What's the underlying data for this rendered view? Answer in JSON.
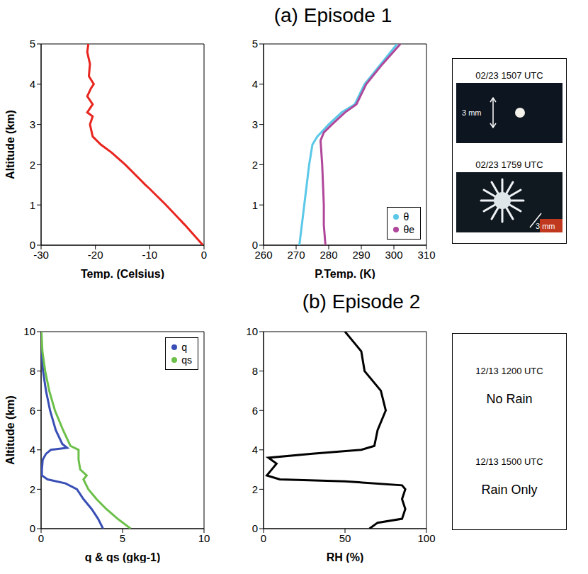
{
  "titles": [
    "(a) Episode 1",
    "(b) Episode 2"
  ],
  "chart_data": [
    {
      "type": "line",
      "xlabel": "Temp. (Celsius)",
      "ylabel": "Altitude (km)",
      "xlim": [
        -30,
        0
      ],
      "xticks": [
        -30,
        -20,
        -10,
        0
      ],
      "ylim": [
        0,
        5
      ],
      "yticks": [
        0,
        1,
        2,
        3,
        4,
        5
      ],
      "series": [
        {
          "color": "#e8251f",
          "x": [
            -0.2,
            -3.5,
            -7,
            -10,
            -10.8,
            -14.5,
            -17,
            -19,
            -20.5,
            -21,
            -20.5,
            -21.5,
            -20.5,
            -21.5,
            -20.8,
            -20.3,
            -21.2,
            -21,
            -21.5,
            -21.3
          ],
          "y": [
            0,
            0.5,
            1.0,
            1.4,
            1.5,
            2.0,
            2.3,
            2.5,
            2.7,
            3.0,
            3.2,
            3.3,
            3.5,
            3.7,
            3.9,
            4.0,
            4.2,
            4.5,
            4.8,
            5.0
          ]
        }
      ]
    },
    {
      "type": "line",
      "xlabel": "P.Temp. (K)",
      "xlim": [
        260,
        310
      ],
      "xticks": [
        260,
        270,
        280,
        290,
        300,
        310
      ],
      "ylim": [
        0,
        5
      ],
      "yticks": [
        0,
        1,
        2,
        3,
        4,
        5
      ],
      "legend": "lower right",
      "series": [
        {
          "name": "θ",
          "color": "#5bc8e8",
          "x": [
            271,
            272.5,
            274,
            275,
            276.5,
            280,
            284,
            288,
            291,
            296,
            301
          ],
          "y": [
            0,
            1,
            2,
            2.5,
            2.7,
            3.0,
            3.3,
            3.5,
            4,
            4.5,
            5
          ]
        },
        {
          "name": "θe",
          "color": "#b0479b",
          "x": [
            279,
            278.5,
            278.5,
            278,
            277.5,
            278.5,
            281,
            285,
            288.5,
            291.5,
            296.5,
            302
          ],
          "y": [
            0,
            0.5,
            1,
            2,
            2.6,
            2.8,
            3.0,
            3.3,
            3.5,
            4,
            4.5,
            5
          ]
        }
      ]
    },
    {
      "type": "line",
      "xlabel": "q & qs (gkg-1)",
      "ylabel": "Altitude (km)",
      "xlim": [
        0,
        10
      ],
      "xticks": [
        0,
        5,
        10
      ],
      "ylim": [
        0,
        10
      ],
      "yticks": [
        0,
        2,
        4,
        6,
        8,
        10
      ],
      "legend": "upper right",
      "series": [
        {
          "name": "q",
          "color": "#3a4fb5",
          "x": [
            3.8,
            3.5,
            3.1,
            2.6,
            2.2,
            1.5,
            0.4,
            0.05,
            0.05,
            0.1,
            0.3,
            0.6,
            1.6,
            1.3,
            0.9,
            0.55,
            0.3,
            0.12,
            0.03,
            0
          ],
          "y": [
            0,
            0.5,
            1,
            1.5,
            2,
            2.3,
            2.5,
            2.7,
            3,
            3.5,
            3.8,
            4.0,
            4.1,
            4.3,
            5,
            6,
            7,
            8,
            9,
            10
          ]
        },
        {
          "name": "qs",
          "color": "#6cc04a",
          "x": [
            5.5,
            4.7,
            4.0,
            3.4,
            2.9,
            2.6,
            2.8,
            2.4,
            2.3,
            2.3,
            1.8,
            1.35,
            0.85,
            0.5,
            0.25,
            0.08,
            0.02
          ],
          "y": [
            0,
            0.5,
            1,
            1.5,
            2,
            2.5,
            2.7,
            3,
            3.5,
            4,
            4.2,
            5,
            6,
            7,
            8,
            9,
            10
          ]
        }
      ]
    },
    {
      "type": "line",
      "xlabel": "RH (%)",
      "xlim": [
        0,
        100
      ],
      "xticks": [
        0,
        50,
        100
      ],
      "ylim": [
        0,
        10
      ],
      "yticks": [
        0,
        2,
        4,
        6,
        8,
        10
      ],
      "series": [
        {
          "color": "#000000",
          "x": [
            65,
            70,
            85,
            87,
            85,
            87,
            85,
            50,
            10,
            2,
            5,
            8,
            3,
            30,
            60,
            68,
            70,
            75,
            72,
            62,
            60,
            55,
            50
          ],
          "y": [
            0,
            0.3,
            0.5,
            1,
            1.5,
            2,
            2.2,
            2.4,
            2.5,
            2.7,
            3,
            3.3,
            3.6,
            3.8,
            4.0,
            4.2,
            5,
            6,
            7,
            8,
            9,
            9.5,
            10
          ]
        }
      ]
    }
  ],
  "photos": [
    {
      "caption": "02/23 1507 UTC",
      "scale": "3 mm"
    },
    {
      "caption": "02/23 1759 UTC",
      "scale": "3 mm"
    }
  ],
  "notes": [
    {
      "time": "12/13 1200 UTC",
      "text": "No Rain"
    },
    {
      "time": "12/13 1500 UTC",
      "text": "Rain Only"
    }
  ]
}
